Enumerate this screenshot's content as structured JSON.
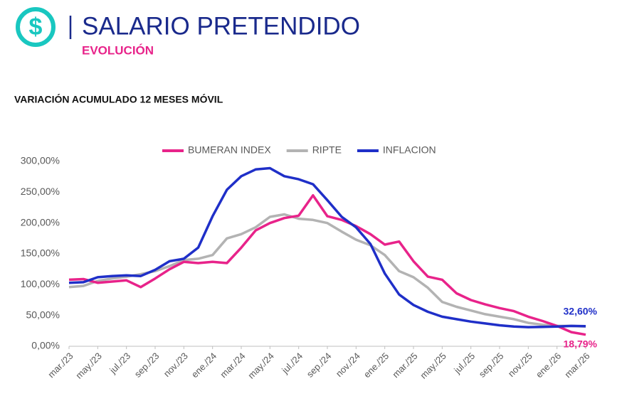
{
  "header": {
    "title": "SALARIO PRETENDIDO",
    "subtitle": "EVOLUCIÓN"
  },
  "chart_data": {
    "type": "line",
    "title": "VARIACIÓN ACUMULADO 12 MESES MÓVIL",
    "categories": [
      "mar./23",
      null,
      "may./23",
      null,
      "jul./23",
      null,
      "sep./23",
      null,
      "nov./23",
      null,
      "ene./24",
      null,
      "mar./24",
      null,
      "may./24",
      null,
      "jul./24",
      null,
      "sep./24",
      null,
      "nov./24",
      null,
      "ene./25",
      null,
      "mar./25",
      null,
      "may./25",
      null,
      "jul./25",
      null,
      "sep./25",
      null,
      "nov./25",
      null,
      "ene./26",
      null,
      "mar./26"
    ],
    "series": [
      {
        "name": "BUMERAN INDEX",
        "color": "#e8238a",
        "values": [
          108,
          109,
          103,
          105,
          107,
          96,
          110,
          125,
          137,
          135,
          137,
          135,
          160,
          188,
          200,
          208,
          212,
          245,
          211,
          205,
          195,
          182,
          165,
          170,
          138,
          113,
          108,
          86,
          75,
          68,
          62,
          57,
          48,
          41,
          33,
          23,
          18.79
        ],
        "end_label": "18,79%"
      },
      {
        "name": "RIPTE",
        "color": "#b3b3b3",
        "values": [
          96,
          98,
          106,
          110,
          113,
          117,
          122,
          130,
          140,
          142,
          148,
          175,
          182,
          193,
          210,
          214,
          207,
          205,
          200,
          186,
          173,
          164,
          148,
          122,
          112,
          95,
          72,
          64,
          58,
          52,
          48,
          44,
          38,
          35,
          33,
          33,
          32
        ]
      },
      {
        "name": "INFLACION",
        "color": "#1f2fc8",
        "values": [
          103,
          104,
          112,
          114,
          115,
          114,
          124,
          138,
          142,
          160,
          211,
          254,
          276,
          287,
          289,
          276,
          271,
          263,
          237,
          210,
          193,
          166,
          118,
          84,
          67,
          56,
          48,
          44,
          40,
          37,
          34,
          32,
          31,
          31.5,
          32,
          33,
          32.6
        ],
        "end_label": "32,60%"
      }
    ],
    "ylim": [
      0,
      300
    ],
    "yticks": [
      {
        "value": 0,
        "label": "0,00%"
      },
      {
        "value": 50,
        "label": "50,00%"
      },
      {
        "value": 100,
        "label": "100,00%"
      },
      {
        "value": 150,
        "label": "150,00%"
      },
      {
        "value": 200,
        "label": "200,00%"
      },
      {
        "value": 250,
        "label": "250,00%"
      },
      {
        "value": 300,
        "label": "300,00%"
      }
    ],
    "grid": false,
    "legend": "top"
  }
}
